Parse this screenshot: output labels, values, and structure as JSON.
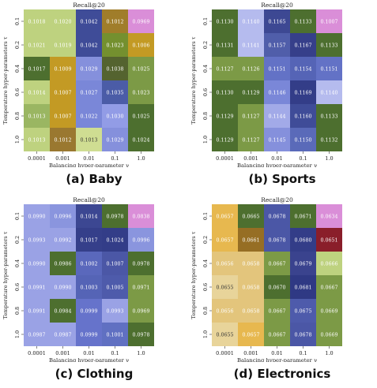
{
  "chart_data": [
    {
      "type": "heatmap",
      "title": "Recall@20",
      "caption": "(a) Baby",
      "xlabel": "Balancing hyper-parameter γ",
      "ylabel": "Temperature hyper-parameters τ",
      "x_categories": [
        "0.0001",
        "0.001",
        "0.01",
        "0.1",
        "1.0"
      ],
      "y_categories": [
        "0.1",
        "0.2",
        "0.4",
        "0.6",
        "0.8",
        "1.0"
      ],
      "values": [
        [
          "0.1018",
          "0.1020",
          "0.1042",
          "0.1012",
          "0.0969"
        ],
        [
          "0.1021",
          "0.1019",
          "0.1042",
          "0.1023",
          "0.1006"
        ],
        [
          "0.1017",
          "0.1009",
          "0.1029",
          "0.1038",
          "0.1025"
        ],
        [
          "0.1014",
          "0.1007",
          "0.1027",
          "0.1035",
          "0.1023"
        ],
        [
          "0.1013",
          "0.1007",
          "0.1022",
          "0.1030",
          "0.1025"
        ],
        [
          "0.1013",
          "0.1012",
          "0.1013",
          "0.1029",
          "0.1024"
        ]
      ],
      "colors": [
        [
          "#bed27f",
          "#bed27f",
          "#3f4c98",
          "#a07d2a",
          "#da8ed8"
        ],
        [
          "#bed27f",
          "#bed27f",
          "#3f4c98",
          "#74902f",
          "#c39a24"
        ],
        [
          "#4d6f2f",
          "#c39a24",
          "#8590dc",
          "#54632f",
          "#7c9a46"
        ],
        [
          "#bed27f",
          "#c39a24",
          "#7a87d8",
          "#4b5ca7",
          "#7c9a46"
        ],
        [
          "#9ab662",
          "#c39a24",
          "#7a87d8",
          "#929ce6",
          "#4d6f2f"
        ],
        [
          "#bed27f",
          "#9a7830",
          "#cfdd92",
          "#8590dc",
          "#4d6f2f"
        ]
      ]
    },
    {
      "type": "heatmap",
      "title": "Recall@20",
      "caption": "(b) Sports",
      "xlabel": "Balancing hyper-parameter γ",
      "ylabel": "Temperature hyper-parameters τ",
      "x_categories": [
        "0.0001",
        "0.001",
        "0.01",
        "0.1",
        "1.0"
      ],
      "y_categories": [
        "0.1",
        "0.2",
        "0.4",
        "0.6",
        "0.8",
        "1.0"
      ],
      "values": [
        [
          "0.1130",
          "0.1140",
          "0.1165",
          "0.1133",
          "0.1007"
        ],
        [
          "0.1131",
          "0.1141",
          "0.1157",
          "0.1167",
          "0.1133"
        ],
        [
          "0.1127",
          "0.1126",
          "0.1151",
          "0.1154",
          "0.1151"
        ],
        [
          "0.1130",
          "0.1129",
          "0.1146",
          "0.1169",
          "0.1140"
        ],
        [
          "0.1129",
          "0.1127",
          "0.1144",
          "0.1160",
          "0.1133"
        ],
        [
          "0.1129",
          "0.1127",
          "0.1145",
          "0.1150",
          "0.1132"
        ]
      ],
      "colors": [
        [
          "#4d6f2f",
          "#b5bbee",
          "#3d4893",
          "#4d6f2f",
          "#da8ed8"
        ],
        [
          "#4d6f2f",
          "#b5bbee",
          "#505eaa",
          "#363f8a",
          "#4d6f2f"
        ],
        [
          "#7c9a46",
          "#7c9a46",
          "#6372c6",
          "#5564b6",
          "#6372c6"
        ],
        [
          "#4d6f2f",
          "#4d6f2f",
          "#7a87d8",
          "#333d88",
          "#b5bbee"
        ],
        [
          "#4d6f2f",
          "#7c9a46",
          "#a2aae8",
          "#3f4c98",
          "#4d6f2f"
        ],
        [
          "#4d6f2f",
          "#7c9a46",
          "#8590dc",
          "#5a6ab9",
          "#4d6f2f"
        ]
      ]
    },
    {
      "type": "heatmap",
      "title": "Recall@20",
      "caption": "(c) Clothing",
      "xlabel": "Balancing hyper-parameter γ",
      "ylabel": "Temperature hyper-parameters τ",
      "x_categories": [
        "0.0001",
        "0.001",
        "0.01",
        "0.1",
        "1.0"
      ],
      "y_categories": [
        "0.1",
        "0.2",
        "0.4",
        "0.6",
        "0.8",
        "1.0"
      ],
      "values": [
        [
          "0.0990",
          "0.0996",
          "0.1014",
          "0.0978",
          "0.0838"
        ],
        [
          "0.0993",
          "0.0992",
          "0.1017",
          "0.1024",
          "0.0996"
        ],
        [
          "0.0990",
          "0.0986",
          "0.1002",
          "0.1007",
          "0.0978"
        ],
        [
          "0.0991",
          "0.0990",
          "0.1003",
          "0.1005",
          "0.0971"
        ],
        [
          "0.0991",
          "0.0984",
          "0.0999",
          "0.0993",
          "0.0969"
        ],
        [
          "0.0987",
          "0.0987",
          "0.0999",
          "0.1001",
          "0.0978"
        ]
      ],
      "colors": [
        [
          "#9aa2e5",
          "#8a95de",
          "#3c4792",
          "#4d6f2f",
          "#da8ed8"
        ],
        [
          "#9aa2e5",
          "#9aa2e5",
          "#353f8a",
          "#333d88",
          "#8a95de"
        ],
        [
          "#9aa2e5",
          "#4d6f2f",
          "#5a68bc",
          "#4b57a6",
          "#4d6f2f"
        ],
        [
          "#9aa2e5",
          "#9aa2e5",
          "#5564b6",
          "#4e5bab",
          "#7c9a46"
        ],
        [
          "#9aa2e5",
          "#4d6f2f",
          "#6673cb",
          "#9aa2e5",
          "#7c9a46"
        ],
        [
          "#9aa2e5",
          "#9aa2e5",
          "#6673cb",
          "#6070c2",
          "#4d6f2f"
        ]
      ]
    },
    {
      "type": "heatmap",
      "title": "Recall@20",
      "caption": "(d) Electronics",
      "xlabel": "Balancing hyper-parameter γ",
      "ylabel": "Temperature hyper-parameters τ",
      "x_categories": [
        "0.0001",
        "0.001",
        "0.01",
        "0.1",
        "1.0"
      ],
      "y_categories": [
        "0.1",
        "0.2",
        "0.4",
        "0.6",
        "0.8",
        "1.0"
      ],
      "values": [
        [
          "0.0657",
          "0.0665",
          "0.0678",
          "0.0671",
          "0.0634"
        ],
        [
          "0.0657",
          "0.0661",
          "0.0678",
          "0.0680",
          "0.0651"
        ],
        [
          "0.0656",
          "0.0658",
          "0.0667",
          "0.0679",
          "0.0666"
        ],
        [
          "0.0655",
          "0.0658",
          "0.0670",
          "0.0681",
          "0.0667"
        ],
        [
          "0.0656",
          "0.0658",
          "0.0667",
          "0.0675",
          "0.0669"
        ],
        [
          "0.0655",
          "0.0657",
          "0.0667",
          "0.0678",
          "0.0669"
        ]
      ],
      "colors": [
        [
          "#e7b84f",
          "#4d6f2f",
          "#4b57a6",
          "#4d6f2f",
          "#da8ed8"
        ],
        [
          "#e7b84f",
          "#966e24",
          "#4b57a6",
          "#333d88",
          "#8a1e2a"
        ],
        [
          "#e3c57c",
          "#e3c57c",
          "#7c9a46",
          "#3a438e",
          "#bed27f"
        ],
        [
          "#e8d49a",
          "#e3c57c",
          "#4d6f2f",
          "#2f3984",
          "#7c9a46"
        ],
        [
          "#e3c57c",
          "#e3c57c",
          "#7c9a46",
          "#4e5bab",
          "#7c9a46"
        ],
        [
          "#e8d49a",
          "#e7b84f",
          "#7c9a46",
          "#4b57a6",
          "#7c9a46"
        ]
      ]
    }
  ]
}
